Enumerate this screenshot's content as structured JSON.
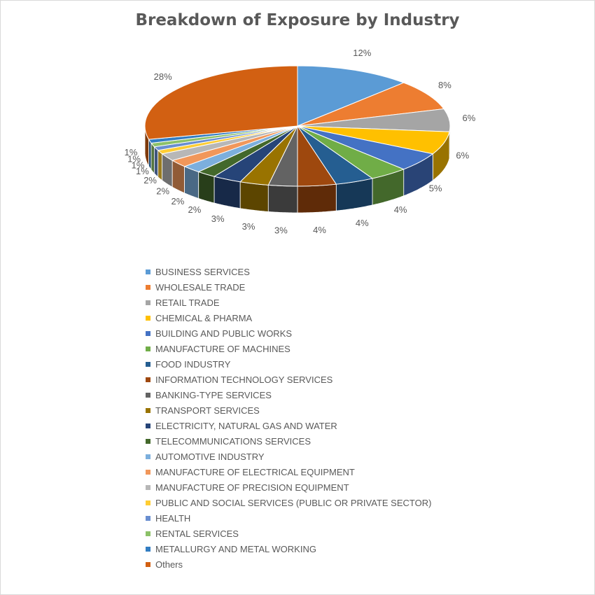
{
  "chart_data": {
    "type": "pie",
    "title": "Breakdown of Exposure by Industry",
    "legend_position": "bottom",
    "labels": [
      "BUSINESS SERVICES",
      "WHOLESALE TRADE",
      "RETAIL TRADE",
      "CHEMICAL & PHARMA",
      "BUILDING AND PUBLIC WORKS",
      "MANUFACTURE OF MACHINES",
      "FOOD INDUSTRY",
      "INFORMATION TECHNOLOGY SERVICES",
      "BANKING-TYPE SERVICES",
      "TRANSPORT SERVICES",
      "ELECTRICITY, NATURAL GAS AND WATER",
      "TELECOMMUNICATIONS SERVICES",
      "AUTOMOTIVE INDUSTRY",
      "MANUFACTURE OF ELECTRICAL EQUIPMENT",
      "MANUFACTURE OF PRECISION EQUIPMENT",
      "PUBLIC AND SOCIAL SERVICES (PUBLIC OR PRIVATE SECTOR)",
      "HEALTH",
      "RENTAL SERVICES",
      "METALLURGY AND METAL WORKING",
      "Others"
    ],
    "values": [
      12,
      8,
      6,
      6,
      5,
      4,
      4,
      4,
      3,
      3,
      3,
      2,
      2,
      2,
      2,
      1,
      1,
      1,
      1,
      28
    ],
    "data_labels": [
      "12%",
      "8%",
      "6%",
      "6%",
      "5%",
      "4%",
      "4%",
      "4%",
      "3%",
      "3%",
      "3%",
      "2%",
      "2%",
      "2%",
      "2%",
      "1%",
      "1%",
      "1%",
      "1%",
      "28%"
    ],
    "colors": [
      "#5b9bd5",
      "#ed7d31",
      "#a5a5a5",
      "#ffc000",
      "#4472c4",
      "#70ad47",
      "#255e91",
      "#9e480e",
      "#636363",
      "#997300",
      "#264478",
      "#43682b",
      "#7cafdd",
      "#f1975a",
      "#b7b7b7",
      "#ffcd33",
      "#698ed0",
      "#8cc168",
      "#327dc2",
      "#d26012"
    ],
    "style": "3d-pie"
  }
}
